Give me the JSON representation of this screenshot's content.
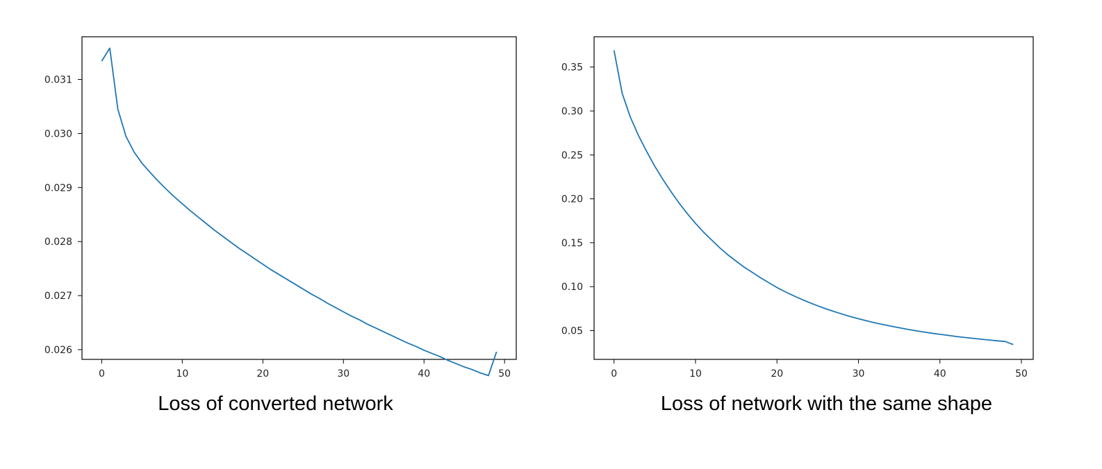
{
  "chart_data": [
    {
      "type": "line",
      "caption": "Loss of converted network",
      "xlim": [
        -2.45,
        51.45
      ],
      "ylim": [
        0.02582,
        0.03179
      ],
      "xticks": [
        0,
        10,
        20,
        30,
        40,
        50
      ],
      "yticks": [
        0.026,
        0.027,
        0.028,
        0.029,
        0.03,
        0.031
      ],
      "ytick_labels": [
        "0.026",
        "0.027",
        "0.028",
        "0.029",
        "0.030",
        "0.031"
      ],
      "grid": false,
      "color": "#1f77b4",
      "series": [
        {
          "x": [
            0,
            1,
            2,
            3,
            4,
            5,
            6,
            7,
            8,
            9,
            10,
            11,
            12,
            13,
            14,
            15,
            16,
            17,
            18,
            19,
            20,
            21,
            22,
            23,
            24,
            25,
            26,
            27,
            28,
            29,
            30,
            31,
            32,
            33,
            34,
            35,
            36,
            37,
            38,
            39,
            40,
            41,
            42,
            43,
            44,
            45,
            46,
            47,
            48,
            49
          ],
          "values": [
            0.03134,
            0.03158,
            0.03045,
            0.02995,
            0.02966,
            0.02945,
            0.02928,
            0.02912,
            0.02897,
            0.02883,
            0.0287,
            0.02857,
            0.02845,
            0.02833,
            0.02821,
            0.0281,
            0.02799,
            0.02788,
            0.02778,
            0.02768,
            0.02758,
            0.02748,
            0.02739,
            0.0273,
            0.02721,
            0.02712,
            0.02703,
            0.02695,
            0.02686,
            0.02678,
            0.0267,
            0.02662,
            0.02655,
            0.02647,
            0.0264,
            0.02633,
            0.02626,
            0.02619,
            0.02612,
            0.02606,
            0.02599,
            0.02593,
            0.02587,
            0.0258,
            0.02574,
            0.02568,
            0.02563,
            0.02557,
            0.02552,
            0.02596
          ]
        }
      ]
    },
    {
      "type": "line",
      "caption": "Loss of network with the same shape",
      "xlim": [
        -2.45,
        51.45
      ],
      "ylim": [
        0.0172,
        0.3845
      ],
      "xticks": [
        0,
        10,
        20,
        30,
        40,
        50
      ],
      "yticks": [
        0.05,
        0.1,
        0.15,
        0.2,
        0.25,
        0.3,
        0.35
      ],
      "ytick_labels": [
        "0.05",
        "0.10",
        "0.15",
        "0.20",
        "0.25",
        "0.30",
        "0.35"
      ],
      "grid": false,
      "color": "#1f77b4",
      "series": [
        {
          "x": [
            0,
            1,
            2,
            3,
            4,
            5,
            6,
            7,
            8,
            9,
            10,
            11,
            12,
            13,
            14,
            15,
            16,
            17,
            18,
            19,
            20,
            21,
            22,
            23,
            24,
            25,
            26,
            27,
            28,
            29,
            30,
            31,
            32,
            33,
            34,
            35,
            36,
            37,
            38,
            39,
            40,
            41,
            42,
            43,
            44,
            45,
            46,
            47,
            48,
            49
          ],
          "values": [
            0.369,
            0.32,
            0.293,
            0.272,
            0.254,
            0.237,
            0.222,
            0.208,
            0.195,
            0.183,
            0.172,
            0.162,
            0.153,
            0.144,
            0.136,
            0.129,
            0.122,
            0.116,
            0.11,
            0.1045,
            0.099,
            0.0942,
            0.0898,
            0.0857,
            0.0818,
            0.0782,
            0.0748,
            0.0717,
            0.0688,
            0.066,
            0.0635,
            0.0611,
            0.0589,
            0.0569,
            0.055,
            0.0532,
            0.0515,
            0.0499,
            0.0484,
            0.047,
            0.0457,
            0.0445,
            0.0433,
            0.0422,
            0.0412,
            0.0402,
            0.0393,
            0.0384,
            0.0376,
            0.034
          ]
        }
      ]
    }
  ]
}
